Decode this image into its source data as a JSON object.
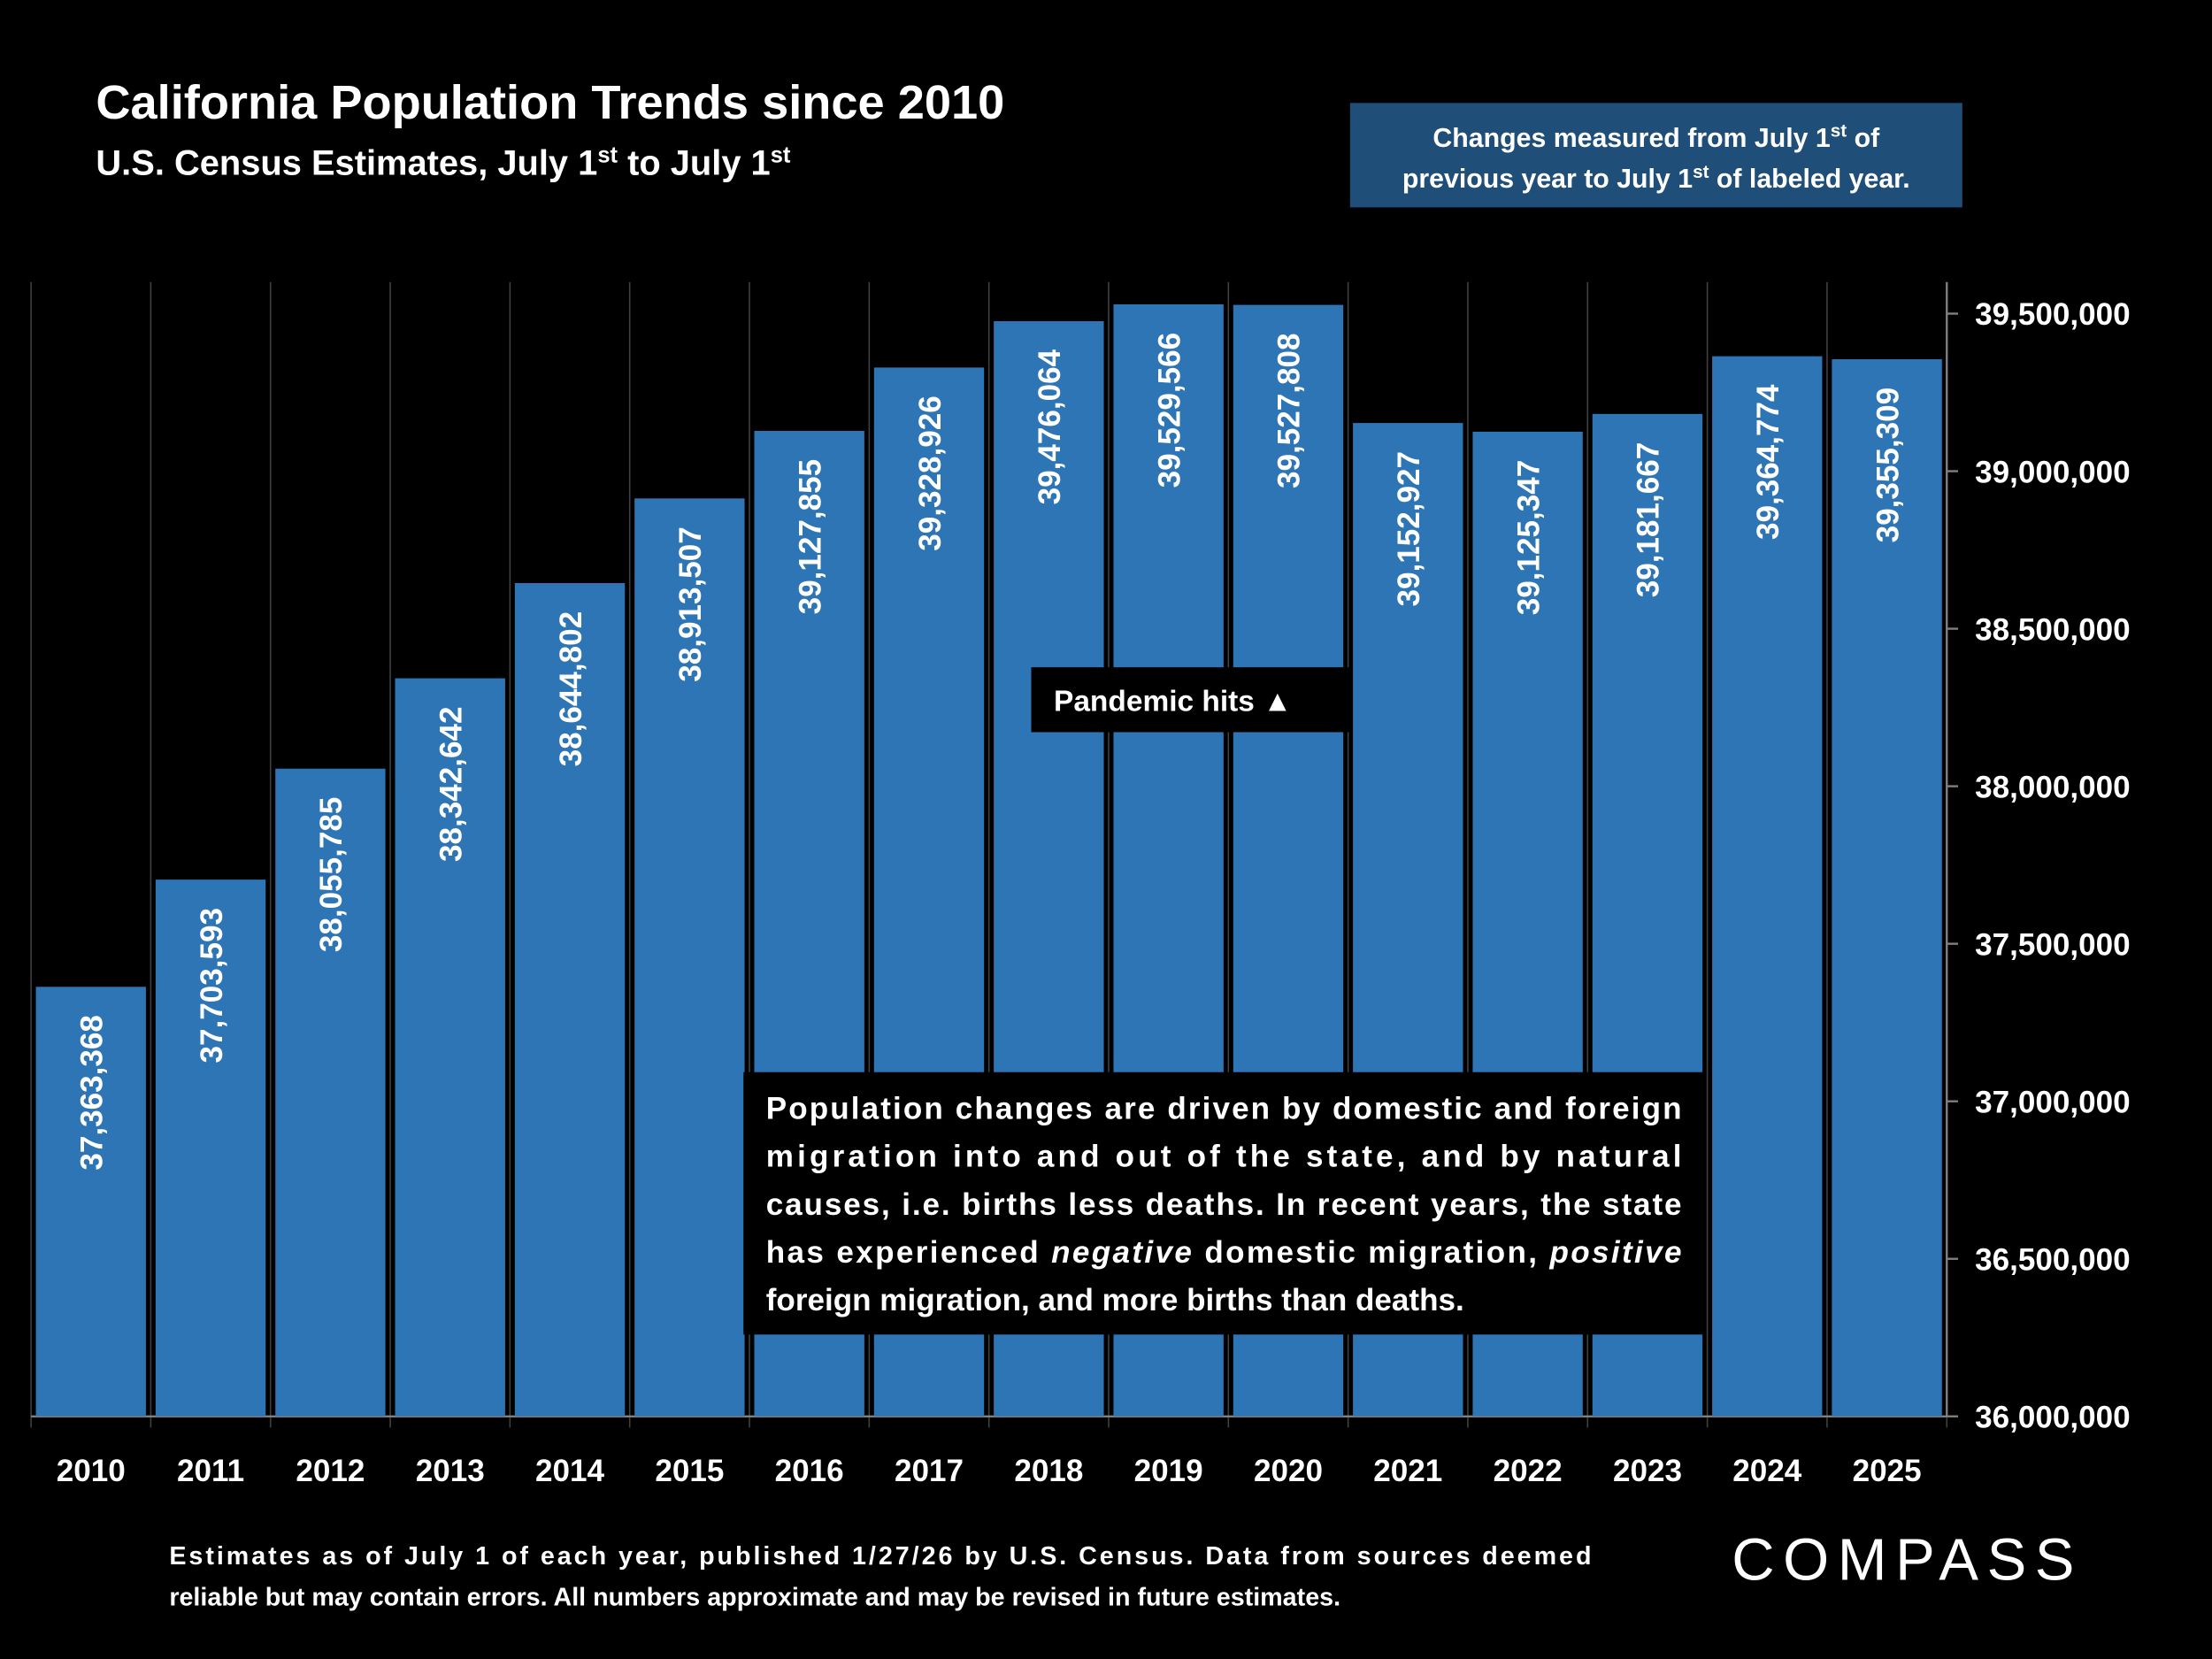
{
  "chart_data": {
    "type": "bar",
    "title": "California Population Trends since 2010",
    "subtitle": [
      "U.S. Census Estimates, July 1",
      "st",
      " to July 1",
      "st"
    ],
    "note_box": [
      [
        "Changes measured from July 1",
        "st",
        " of"
      ],
      [
        "previous year to July 1",
        "st",
        " of labeled year."
      ]
    ],
    "categories": [
      "2010",
      "2011",
      "2012",
      "2013",
      "2014",
      "2015",
      "2016",
      "2017",
      "2018",
      "2019",
      "2020",
      "2021",
      "2022",
      "2023",
      "2024",
      "2025"
    ],
    "values": [
      37363368,
      37703593,
      38055785,
      38342642,
      38644802,
      38913507,
      39127855,
      39328926,
      39476064,
      39529566,
      39527808,
      39152927,
      39125347,
      39181667,
      39364774,
      39355309
    ],
    "value_labels": [
      "37,363,368",
      "37,703,593",
      "38,055,785",
      "38,342,642",
      "38,644,802",
      "38,913,507",
      "39,127,855",
      "39,328,926",
      "39,476,064",
      "39,529,566",
      "39,527,808",
      "39,152,927",
      "39,125,347",
      "39,181,667",
      "39,364,774",
      "39,355,309"
    ],
    "color": "#2e75b6",
    "ylim": [
      36000000,
      39600000
    ],
    "yticks": [
      {
        "value": 36000000,
        "label": "36,000,000"
      },
      {
        "value": 36500000,
        "label": "36,500,000"
      },
      {
        "value": 37000000,
        "label": "37,000,000"
      },
      {
        "value": 37500000,
        "label": "37,500,000"
      },
      {
        "value": 38000000,
        "label": "38,000,000"
      },
      {
        "value": 38500000,
        "label": "38,500,000"
      },
      {
        "value": 39000000,
        "label": "39,000,000"
      },
      {
        "value": 39500000,
        "label": "39,500,000"
      }
    ],
    "annotation": "Pandemic hits ▲",
    "explanation": [
      [
        "Population changes are driven by domestic and foreign"
      ],
      [
        "migration into and out of the state, and by natural"
      ],
      [
        "causes, i.e. births less deaths. In recent years, the state"
      ],
      [
        "has experienced ",
        "negative",
        " domestic migration, ",
        "positive"
      ],
      [
        "foreign migration, and more births than deaths."
      ]
    ],
    "footnote": [
      "Estimates as of July 1 of each year, published 1/27/26 by U.S. Census. Data from sources deemed",
      "reliable but may contain errors. All numbers approximate and may be revised in future estimates."
    ],
    "logo": "COMPASS"
  }
}
